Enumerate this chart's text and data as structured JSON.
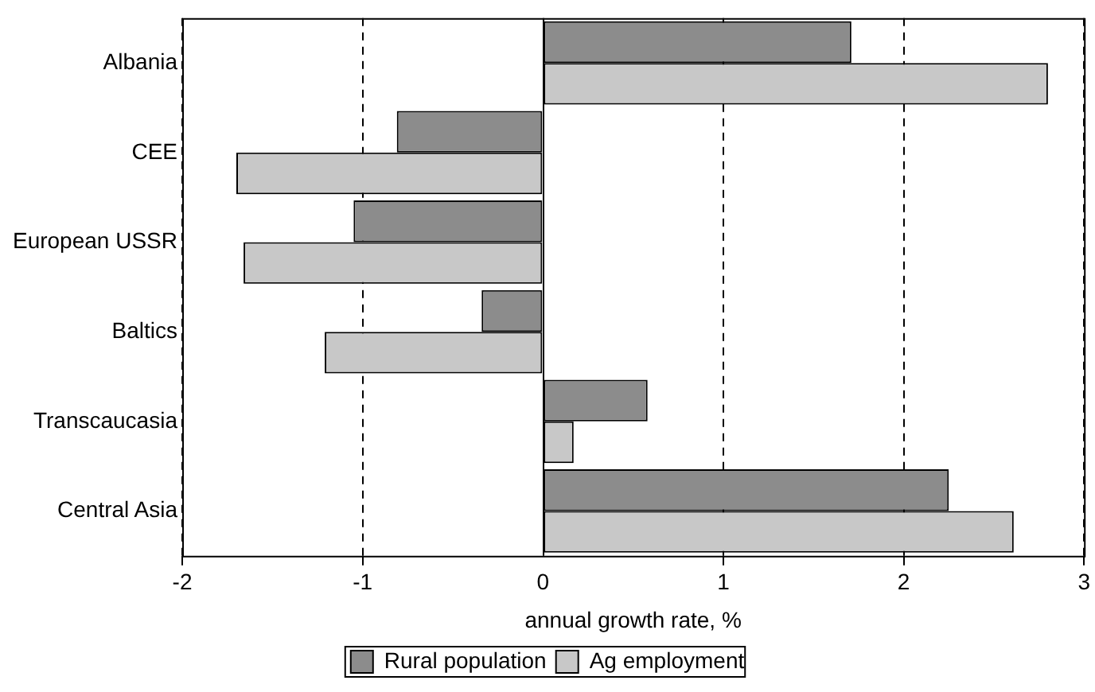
{
  "chart_data": {
    "type": "bar",
    "orientation": "horizontal",
    "xlabel": "annual growth rate, %",
    "categories": [
      "Albania",
      "CEE",
      "European USSR",
      "Baltics",
      "Transcaucasia",
      "Central Asia"
    ],
    "series": [
      {
        "name": "Rural population",
        "color": "#8c8c8c",
        "values": [
          1.71,
          -0.81,
          -1.05,
          -0.34,
          0.58,
          2.25
        ]
      },
      {
        "name": "Ag employment",
        "color": "#c8c8c8",
        "values": [
          2.8,
          -1.7,
          -1.66,
          -1.21,
          0.17,
          2.61
        ]
      }
    ],
    "xlim": [
      -2,
      3
    ],
    "xticks": [
      -2,
      -1,
      0,
      1,
      2,
      3
    ],
    "grid": "x",
    "line_style": "dashed",
    "legend": "bottom"
  }
}
